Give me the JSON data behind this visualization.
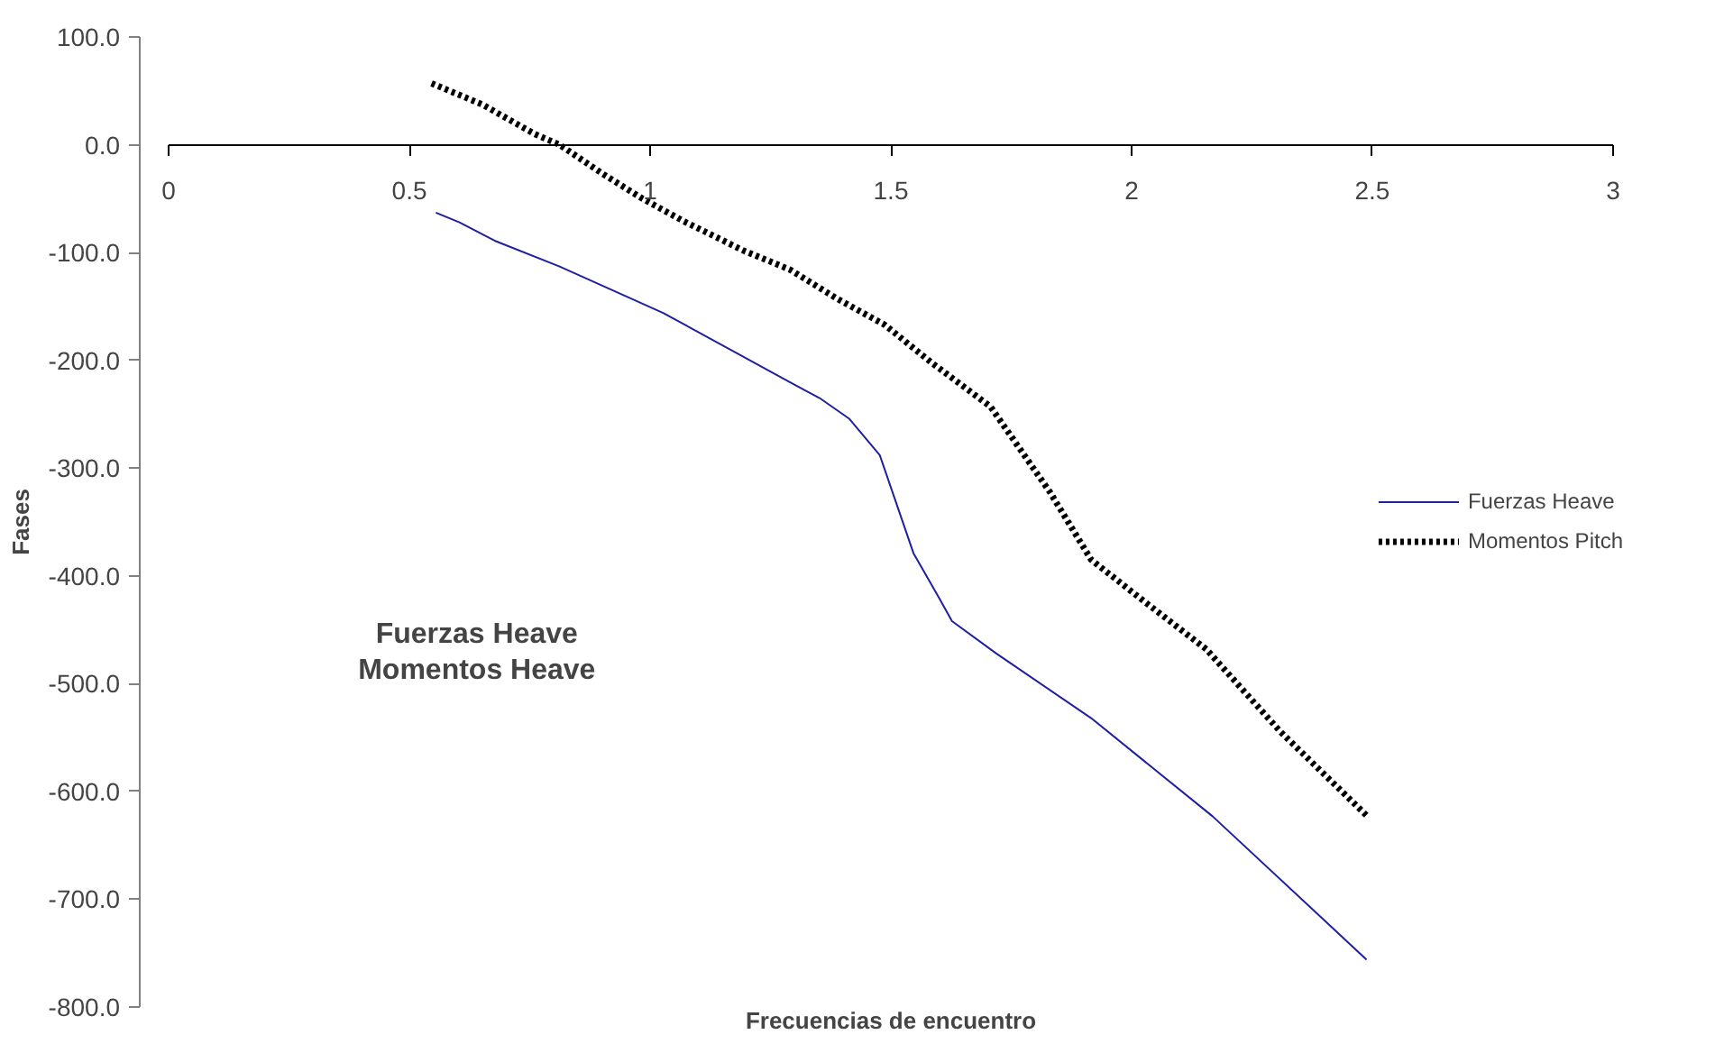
{
  "chart_data": {
    "type": "line",
    "xlabel": "Frecuencias de encuentro",
    "ylabel": "Fases",
    "annotations": [
      "Fuerzas Heave\nMomentos Heave"
    ],
    "xlim": [
      0,
      3
    ],
    "xticks": [
      0,
      0.5,
      1,
      1.5,
      2,
      2.5,
      3
    ],
    "ylim": [
      -800,
      100
    ],
    "yticks": [
      {
        "value": 100,
        "label": "100.0"
      },
      {
        "value": 0,
        "label": "0.0"
      },
      {
        "value": -100,
        "label": "-100.0"
      },
      {
        "value": -200,
        "label": "-200.0"
      },
      {
        "value": -300,
        "label": "-300.0"
      },
      {
        "value": -400,
        "label": "-400.0"
      },
      {
        "value": -500,
        "label": "-500.0"
      },
      {
        "value": -600,
        "label": "-600.0"
      },
      {
        "value": -700,
        "label": "-700.0"
      },
      {
        "value": -800,
        "label": "-800.0"
      }
    ],
    "grid": false,
    "legend": "right",
    "series": [
      {
        "name": "Fuerzas Heave",
        "color": "#1f1f9f",
        "line_style": "solid",
        "x": [
          0.555,
          0.604,
          0.677,
          0.812,
          1.027,
          1.297,
          1.352,
          1.413,
          1.477,
          1.547,
          1.602,
          1.627,
          1.719,
          1.916,
          2.168,
          2.488
        ],
        "values": [
          -63,
          -72,
          -89,
          -113,
          -156,
          -222,
          -235,
          -254,
          -288,
          -379,
          -422,
          -442,
          -472,
          -532,
          -623,
          -756
        ]
      },
      {
        "name": "Momentos Pitch",
        "color": "#000000",
        "line_style": "dotted",
        "x": [
          0.546,
          0.653,
          0.76,
          0.812,
          0.898,
          0.984,
          1.07,
          1.193,
          1.291,
          1.389,
          1.487,
          1.584,
          1.707,
          1.83,
          1.916,
          2.027,
          2.155,
          2.31,
          2.492
        ],
        "values": [
          57,
          37,
          10,
          0,
          -26,
          -50,
          -71,
          -98,
          -116,
          -143,
          -167,
          -202,
          -243,
          -322,
          -385,
          -424,
          -468,
          -545,
          -624
        ]
      }
    ]
  }
}
